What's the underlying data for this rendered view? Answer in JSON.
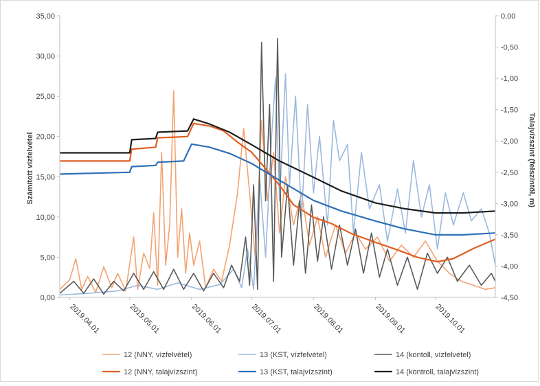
{
  "chart_data": {
    "type": "line",
    "title": "",
    "ylabel": "Számított vízfelvétel",
    "y2label": "Talajvízszint (felszíntől, m)",
    "ylim": [
      0,
      35
    ],
    "y2lim": [
      -4.5,
      0
    ],
    "yticks": [
      "0,00",
      "5,00",
      "10,00",
      "15,00",
      "20,00",
      "25,00",
      "30,00",
      "35,00"
    ],
    "y2ticks": [
      "0,00",
      "-0,50",
      "-1,00",
      "-1,50",
      "-2,00",
      "-2,50",
      "-3,00",
      "-3,50",
      "-4,00",
      "-4,50"
    ],
    "x_start": "2019.03.27",
    "x_end": "2019.10.31",
    "xticks": [
      "2019.04.01",
      "2019.05.01",
      "2019.06.01",
      "2019.07.01",
      "2019.08.01",
      "2019.09.01",
      "2019.10.01"
    ],
    "grid": false,
    "legend_position": "bottom",
    "series": [
      {
        "name": "12 (NNY, vízfelvétel)",
        "axis": "left",
        "color": "#f4a270",
        "stroke_width": 1.6,
        "points": [
          [
            "2019.03.27",
            1.0
          ],
          [
            "2019.04.01",
            2.2
          ],
          [
            "2019.04.04",
            4.8
          ],
          [
            "2019.04.07",
            1.0
          ],
          [
            "2019.04.10",
            2.6
          ],
          [
            "2019.04.14",
            0.6
          ],
          [
            "2019.04.18",
            3.8
          ],
          [
            "2019.04.22",
            1.2
          ],
          [
            "2019.04.25",
            3.0
          ],
          [
            "2019.04.29",
            0.8
          ],
          [
            "2019.05.03",
            7.5
          ],
          [
            "2019.05.05",
            1.0
          ],
          [
            "2019.05.08",
            5.5
          ],
          [
            "2019.05.11",
            3.6
          ],
          [
            "2019.05.13",
            10.5
          ],
          [
            "2019.05.15",
            1.5
          ],
          [
            "2019.05.17",
            18.0
          ],
          [
            "2019.05.19",
            4.0
          ],
          [
            "2019.05.21",
            9.0
          ],
          [
            "2019.05.23",
            25.7
          ],
          [
            "2019.05.25",
            5.0
          ],
          [
            "2019.05.27",
            11.0
          ],
          [
            "2019.05.29",
            3.0
          ],
          [
            "2019.05.31",
            8.0
          ],
          [
            "2019.06.02",
            4.0
          ],
          [
            "2019.06.05",
            7.0
          ],
          [
            "2019.06.08",
            1.2
          ],
          [
            "2019.06.12",
            3.5
          ],
          [
            "2019.06.16",
            2.0
          ],
          [
            "2019.06.20",
            6.5
          ],
          [
            "2019.06.24",
            13.0
          ],
          [
            "2019.06.27",
            21.0
          ],
          [
            "2019.06.30",
            13.0
          ],
          [
            "2019.07.03",
            4.5
          ],
          [
            "2019.07.06",
            22.0
          ],
          [
            "2019.07.09",
            12.0
          ],
          [
            "2019.07.12",
            18.0
          ],
          [
            "2019.07.15",
            8.0
          ],
          [
            "2019.07.18",
            15.0
          ],
          [
            "2019.07.22",
            9.0
          ],
          [
            "2019.07.26",
            13.0
          ],
          [
            "2019.07.30",
            6.5
          ],
          [
            "2019.08.03",
            10.0
          ],
          [
            "2019.08.07",
            5.0
          ],
          [
            "2019.08.12",
            9.0
          ],
          [
            "2019.08.17",
            5.5
          ],
          [
            "2019.08.22",
            8.0
          ],
          [
            "2019.08.27",
            6.0
          ],
          [
            "2019.09.02",
            7.5
          ],
          [
            "2019.09.08",
            4.5
          ],
          [
            "2019.09.14",
            6.5
          ],
          [
            "2019.09.20",
            5.0
          ],
          [
            "2019.09.26",
            7.0
          ],
          [
            "2019.10.02",
            4.5
          ],
          [
            "2019.10.08",
            3.0
          ],
          [
            "2019.10.14",
            2.0
          ],
          [
            "2019.10.20",
            1.5
          ],
          [
            "2019.10.26",
            1.0
          ],
          [
            "2019.10.31",
            1.2
          ]
        ]
      },
      {
        "name": "13 (KST, vízfelvétel)",
        "axis": "left",
        "color": "#9ab9dc",
        "stroke_width": 1.6,
        "points": [
          [
            "2019.03.27",
            0.3
          ],
          [
            "2019.04.10",
            0.5
          ],
          [
            "2019.04.25",
            0.8
          ],
          [
            "2019.05.05",
            1.5
          ],
          [
            "2019.05.15",
            1.0
          ],
          [
            "2019.05.25",
            1.8
          ],
          [
            "2019.06.05",
            1.0
          ],
          [
            "2019.06.15",
            1.6
          ],
          [
            "2019.06.22",
            3.5
          ],
          [
            "2019.06.26",
            1.2
          ],
          [
            "2019.06.29",
            6.0
          ],
          [
            "2019.07.02",
            1.0
          ],
          [
            "2019.07.05",
            15.0
          ],
          [
            "2019.07.08",
            5.0
          ],
          [
            "2019.07.11",
            20.0
          ],
          [
            "2019.07.13",
            27.3
          ],
          [
            "2019.07.15",
            12.0
          ],
          [
            "2019.07.18",
            27.8
          ],
          [
            "2019.07.20",
            14.0
          ],
          [
            "2019.07.23",
            25.0
          ],
          [
            "2019.07.26",
            10.0
          ],
          [
            "2019.07.29",
            24.0
          ],
          [
            "2019.08.01",
            13.0
          ],
          [
            "2019.08.04",
            20.0
          ],
          [
            "2019.08.08",
            9.0
          ],
          [
            "2019.08.11",
            22.0
          ],
          [
            "2019.08.14",
            17.0
          ],
          [
            "2019.08.18",
            19.0
          ],
          [
            "2019.08.21",
            8.0
          ],
          [
            "2019.08.25",
            18.0
          ],
          [
            "2019.08.29",
            11.0
          ],
          [
            "2019.09.03",
            14.0
          ],
          [
            "2019.09.07",
            7.0
          ],
          [
            "2019.09.12",
            13.5
          ],
          [
            "2019.09.16",
            8.0
          ],
          [
            "2019.09.20",
            17.0
          ],
          [
            "2019.09.24",
            10.0
          ],
          [
            "2019.09.28",
            14.0
          ],
          [
            "2019.10.02",
            6.0
          ],
          [
            "2019.10.06",
            13.0
          ],
          [
            "2019.10.10",
            9.0
          ],
          [
            "2019.10.15",
            13.0
          ],
          [
            "2019.10.19",
            9.5
          ],
          [
            "2019.10.24",
            11.0
          ],
          [
            "2019.10.28",
            8.0
          ],
          [
            "2019.10.31",
            4.0
          ]
        ]
      },
      {
        "name": "14 (kontoll, vízfelvétel)",
        "axis": "left",
        "color": "#5a5a5a",
        "stroke_width": 1.6,
        "points": [
          [
            "2019.03.27",
            0.5
          ],
          [
            "2019.04.03",
            2.0
          ],
          [
            "2019.04.08",
            0.5
          ],
          [
            "2019.04.13",
            2.3
          ],
          [
            "2019.04.18",
            0.4
          ],
          [
            "2019.04.23",
            2.0
          ],
          [
            "2019.04.28",
            0.8
          ],
          [
            "2019.05.03",
            3.0
          ],
          [
            "2019.05.08",
            1.0
          ],
          [
            "2019.05.13",
            3.2
          ],
          [
            "2019.05.18",
            1.0
          ],
          [
            "2019.05.23",
            3.5
          ],
          [
            "2019.05.28",
            1.0
          ],
          [
            "2019.06.02",
            3.0
          ],
          [
            "2019.06.07",
            0.8
          ],
          [
            "2019.06.12",
            3.0
          ],
          [
            "2019.06.17",
            1.2
          ],
          [
            "2019.06.21",
            4.0
          ],
          [
            "2019.06.25",
            2.0
          ],
          [
            "2019.06.28",
            7.5
          ],
          [
            "2019.06.30",
            1.5
          ],
          [
            "2019.07.02",
            14.0
          ],
          [
            "2019.07.04",
            1.0
          ],
          [
            "2019.07.06",
            31.7
          ],
          [
            "2019.07.08",
            12.0
          ],
          [
            "2019.07.10",
            24.0
          ],
          [
            "2019.07.12",
            2.0
          ],
          [
            "2019.07.14",
            32.2
          ],
          [
            "2019.07.16",
            5.0
          ],
          [
            "2019.07.19",
            14.0
          ],
          [
            "2019.07.22",
            4.0
          ],
          [
            "2019.07.25",
            12.0
          ],
          [
            "2019.07.28",
            3.0
          ],
          [
            "2019.07.31",
            11.5
          ],
          [
            "2019.08.03",
            4.5
          ],
          [
            "2019.08.06",
            10.0
          ],
          [
            "2019.08.10",
            3.5
          ],
          [
            "2019.08.14",
            9.0
          ],
          [
            "2019.08.18",
            4.0
          ],
          [
            "2019.08.22",
            8.5
          ],
          [
            "2019.08.26",
            3.0
          ],
          [
            "2019.08.30",
            8.0
          ],
          [
            "2019.09.03",
            2.5
          ],
          [
            "2019.09.07",
            6.0
          ],
          [
            "2019.09.12",
            1.5
          ],
          [
            "2019.09.17",
            5.0
          ],
          [
            "2019.09.22",
            1.0
          ],
          [
            "2019.09.27",
            5.5
          ],
          [
            "2019.10.02",
            3.0
          ],
          [
            "2019.10.07",
            5.0
          ],
          [
            "2019.10.12",
            2.0
          ],
          [
            "2019.10.18",
            4.0
          ],
          [
            "2019.10.24",
            1.5
          ],
          [
            "2019.10.29",
            3.0
          ],
          [
            "2019.10.31",
            2.0
          ]
        ]
      },
      {
        "name": "12 (NNY, talajvízszint)",
        "axis": "right",
        "color": "#e05f22",
        "stroke_width": 2.2,
        "points": [
          [
            "2019.03.27",
            -2.32
          ],
          [
            "2019.05.01",
            -2.32
          ],
          [
            "2019.05.02",
            -2.13
          ],
          [
            "2019.05.14",
            -2.1
          ],
          [
            "2019.05.15",
            -1.95
          ],
          [
            "2019.05.30",
            -1.93
          ],
          [
            "2019.06.02",
            -1.72
          ],
          [
            "2019.06.10",
            -1.76
          ],
          [
            "2019.06.17",
            -1.84
          ],
          [
            "2019.06.24",
            -2.02
          ],
          [
            "2019.07.01",
            -2.18
          ],
          [
            "2019.07.08",
            -2.44
          ],
          [
            "2019.07.15",
            -2.71
          ],
          [
            "2019.07.22",
            -3.02
          ],
          [
            "2019.08.01",
            -3.22
          ],
          [
            "2019.08.10",
            -3.32
          ],
          [
            "2019.08.20",
            -3.48
          ],
          [
            "2019.09.01",
            -3.62
          ],
          [
            "2019.09.12",
            -3.74
          ],
          [
            "2019.09.22",
            -3.86
          ],
          [
            "2019.10.02",
            -3.93
          ],
          [
            "2019.10.10",
            -3.88
          ],
          [
            "2019.10.20",
            -3.72
          ],
          [
            "2019.10.31",
            -3.57
          ]
        ]
      },
      {
        "name": "13 (KST, talajvízszint)",
        "axis": "right",
        "color": "#2e6fb8",
        "stroke_width": 2.2,
        "points": [
          [
            "2019.03.27",
            -2.53
          ],
          [
            "2019.05.01",
            -2.5
          ],
          [
            "2019.05.02",
            -2.41
          ],
          [
            "2019.05.14",
            -2.39
          ],
          [
            "2019.05.15",
            -2.34
          ],
          [
            "2019.05.28",
            -2.32
          ],
          [
            "2019.06.01",
            -2.05
          ],
          [
            "2019.06.10",
            -2.1
          ],
          [
            "2019.06.20",
            -2.2
          ],
          [
            "2019.07.01",
            -2.36
          ],
          [
            "2019.07.15",
            -2.63
          ],
          [
            "2019.08.01",
            -2.95
          ],
          [
            "2019.08.15",
            -3.12
          ],
          [
            "2019.09.01",
            -3.28
          ],
          [
            "2019.09.15",
            -3.4
          ],
          [
            "2019.10.01",
            -3.5
          ],
          [
            "2019.10.15",
            -3.5
          ],
          [
            "2019.10.31",
            -3.47
          ]
        ]
      },
      {
        "name": "14 (kontroll, talajvízszint)",
        "axis": "right",
        "color": "#1e1e1e",
        "stroke_width": 2.2,
        "points": [
          [
            "2019.03.27",
            -2.19
          ],
          [
            "2019.05.01",
            -2.19
          ],
          [
            "2019.05.02",
            -1.98
          ],
          [
            "2019.05.14",
            -1.96
          ],
          [
            "2019.05.15",
            -1.86
          ],
          [
            "2019.05.30",
            -1.84
          ],
          [
            "2019.06.02",
            -1.65
          ],
          [
            "2019.06.10",
            -1.73
          ],
          [
            "2019.06.20",
            -1.86
          ],
          [
            "2019.07.01",
            -2.06
          ],
          [
            "2019.07.15",
            -2.32
          ],
          [
            "2019.08.01",
            -2.58
          ],
          [
            "2019.08.15",
            -2.8
          ],
          [
            "2019.09.01",
            -2.99
          ],
          [
            "2019.09.15",
            -3.08
          ],
          [
            "2019.10.01",
            -3.15
          ],
          [
            "2019.10.15",
            -3.15
          ],
          [
            "2019.10.31",
            -3.12
          ]
        ]
      }
    ]
  }
}
